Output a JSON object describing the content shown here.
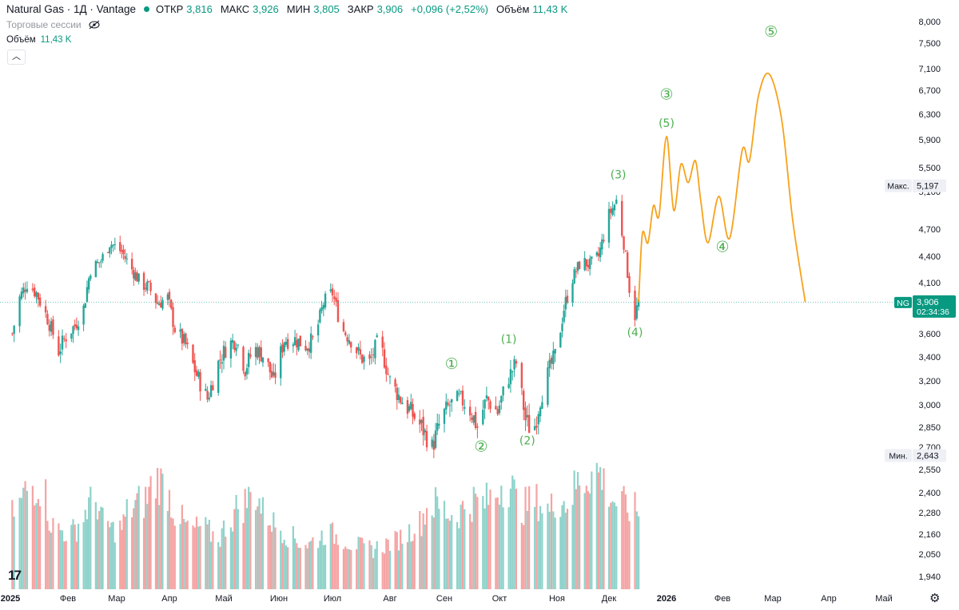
{
  "header": {
    "symbol": "Natural Gas · 1Д · Vantage",
    "open_label": "ОТКР",
    "open_value": "3,816",
    "high_label": "МАКС",
    "high_value": "3,926",
    "low_label": "МИН",
    "low_value": "3,805",
    "close_label": "ЗАКР",
    "close_value": "3,906",
    "change": "+0,096 (+2,52%)",
    "volume_label": "Объём",
    "volume_value": "11,43 K"
  },
  "sub": {
    "sessions_label": "Торговые сессии",
    "eye_icon": "eye-crossed-icon"
  },
  "volume_legend": {
    "label": "Объём",
    "value": "11,43 K"
  },
  "collapse_icon": "chevron-up-icon",
  "logo": "17",
  "settings_icon": "gear-icon",
  "colors": {
    "up": "#26a69a",
    "down": "#ef5350",
    "volUp": "#8fd3cb",
    "volDown": "#f5a3a3",
    "forecast": "#f7a21b",
    "wave": "#4caf50",
    "accent": "#089981"
  },
  "chart_data": {
    "type": "candlestick",
    "symbol": "NG",
    "y_ticks": [
      "8,000",
      "7,500",
      "7,100",
      "6,700",
      "6,300",
      "5,900",
      "5,500",
      "5,100",
      "4,700",
      "4,400",
      "4,100",
      "3,600",
      "3,400",
      "3,200",
      "3,000",
      "2,850",
      "2,700",
      "2,550",
      "2,400",
      "2,280",
      "2,160",
      "2,050",
      "1,940"
    ],
    "x_ticks": [
      "2025",
      "Фев",
      "Мар",
      "Апр",
      "Май",
      "Июн",
      "Июл",
      "Авг",
      "Сен",
      "Окт",
      "Ноя",
      "Дек",
      "2026",
      "Фев",
      "Мар",
      "Апр",
      "Май"
    ],
    "last_price": {
      "label": "NG",
      "value": "3,906",
      "countdown": "02:34:36"
    },
    "max_label": {
      "label": "Макс.",
      "value": "5,197"
    },
    "min_label": {
      "label": "Мин.",
      "value": "2,643"
    },
    "price_path": [
      [
        "2025-01-02",
        3.6
      ],
      [
        "2025-01-06",
        3.95
      ],
      [
        "2025-01-10",
        4.1
      ],
      [
        "2025-01-15",
        4.0
      ],
      [
        "2025-01-21",
        3.75
      ],
      [
        "2025-01-27",
        3.45
      ],
      [
        "2025-01-31",
        3.58
      ],
      [
        "2025-02-05",
        3.68
      ],
      [
        "2025-02-10",
        3.85
      ],
      [
        "2025-02-14",
        4.25
      ],
      [
        "2025-02-20",
        4.35
      ],
      [
        "2025-02-25",
        4.55
      ],
      [
        "2025-03-04",
        4.45
      ],
      [
        "2025-03-10",
        4.25
      ],
      [
        "2025-03-15",
        4.1
      ],
      [
        "2025-03-20",
        4.05
      ],
      [
        "2025-03-25",
        3.9
      ],
      [
        "2025-03-31",
        3.95
      ],
      [
        "2025-04-04",
        3.65
      ],
      [
        "2025-04-10",
        3.5
      ],
      [
        "2025-04-16",
        3.25
      ],
      [
        "2025-04-22",
        3.05
      ],
      [
        "2025-04-28",
        3.35
      ],
      [
        "2025-05-03",
        3.5
      ],
      [
        "2025-05-08",
        3.55
      ],
      [
        "2025-05-13",
        3.3
      ],
      [
        "2025-05-18",
        3.48
      ],
      [
        "2025-05-24",
        3.4
      ],
      [
        "2025-05-29",
        3.2
      ],
      [
        "2025-06-04",
        3.55
      ],
      [
        "2025-06-10",
        3.55
      ],
      [
        "2025-06-16",
        3.5
      ],
      [
        "2025-06-21",
        3.55
      ],
      [
        "2025-06-26",
        3.9
      ],
      [
        "2025-07-01",
        4.0
      ],
      [
        "2025-07-06",
        3.65
      ],
      [
        "2025-07-11",
        3.55
      ],
      [
        "2025-07-16",
        3.4
      ],
      [
        "2025-07-21",
        3.35
      ],
      [
        "2025-07-26",
        3.55
      ],
      [
        "2025-08-01",
        3.2
      ],
      [
        "2025-08-07",
        3.05
      ],
      [
        "2025-08-13",
        2.95
      ],
      [
        "2025-08-19",
        2.85
      ],
      [
        "2025-08-25",
        2.7
      ],
      [
        "2025-08-30",
        2.9
      ],
      [
        "2025-09-04",
        3.0
      ],
      [
        "2025-09-09",
        3.05
      ],
      [
        "2025-09-14",
        3.0
      ],
      [
        "2025-09-19",
        2.85
      ],
      [
        "2025-09-24",
        3.05
      ],
      [
        "2025-09-30",
        2.95
      ],
      [
        "2025-10-05",
        3.2
      ],
      [
        "2025-10-10",
        3.35
      ],
      [
        "2025-10-15",
        2.9
      ],
      [
        "2025-10-19",
        2.8
      ],
      [
        "2025-10-23",
        3.05
      ],
      [
        "2025-10-28",
        3.3
      ],
      [
        "2025-11-01",
        3.45
      ],
      [
        "2025-11-05",
        3.85
      ],
      [
        "2025-11-10",
        4.15
      ],
      [
        "2025-11-15",
        4.35
      ],
      [
        "2025-11-20",
        4.3
      ],
      [
        "2025-11-25",
        4.4
      ],
      [
        "2025-12-01",
        4.85
      ],
      [
        "2025-12-05",
        5.0
      ],
      [
        "2025-12-09",
        4.55
      ],
      [
        "2025-12-12",
        4.05
      ],
      [
        "2025-12-15",
        3.78
      ],
      [
        "2025-12-17",
        3.91
      ]
    ],
    "volume_level": [
      0.5,
      0.62,
      0.7,
      0.72,
      0.45,
      0.4,
      0.38,
      0.42,
      0.55,
      0.6,
      0.45,
      0.4,
      0.42,
      0.55,
      0.58,
      0.62,
      0.75,
      0.7,
      0.55,
      0.45,
      0.4,
      0.42,
      0.38,
      0.35,
      0.45,
      0.55,
      0.6,
      0.65,
      0.52,
      0.45,
      0.4,
      0.35,
      0.32,
      0.3,
      0.35,
      0.38,
      0.36,
      0.33,
      0.3,
      0.28,
      0.27,
      0.3,
      0.32,
      0.35,
      0.4,
      0.45,
      0.55,
      0.58,
      0.52,
      0.5,
      0.55,
      0.6,
      0.58,
      0.62,
      0.72,
      0.7,
      0.55,
      0.58,
      0.6,
      0.52,
      0.62,
      0.58,
      0.7,
      0.75,
      0.8,
      0.78,
      0.62,
      0.58,
      0.55,
      0.52
    ],
    "forecast": [
      [
        "2025-12-17",
        3.91
      ],
      [
        "2025-12-19",
        4.65
      ],
      [
        "2025-12-22",
        4.55
      ],
      [
        "2025-12-25",
        4.95
      ],
      [
        "2025-12-28",
        4.85
      ],
      [
        "2026-01-01",
        5.95
      ],
      [
        "2026-01-05",
        4.9
      ],
      [
        "2026-01-09",
        5.55
      ],
      [
        "2026-01-13",
        5.25
      ],
      [
        "2026-01-17",
        5.6
      ],
      [
        "2026-01-20",
        5.0
      ],
      [
        "2026-01-24",
        4.55
      ],
      [
        "2026-01-30",
        5.05
      ],
      [
        "2026-02-05",
        4.6
      ],
      [
        "2026-02-12",
        5.75
      ],
      [
        "2026-02-16",
        5.6
      ],
      [
        "2026-02-21",
        6.6
      ],
      [
        "2026-02-27",
        7.0
      ],
      [
        "2026-03-06",
        6.2
      ],
      [
        "2026-03-12",
        4.8
      ],
      [
        "2026-03-19",
        3.91
      ]
    ],
    "wave_labels": [
      {
        "text": "①",
        "date": "2025-09-05",
        "price": 3.3
      },
      {
        "text": "(1)",
        "date": "2025-10-06",
        "price": 3.52
      },
      {
        "text": "②",
        "date": "2025-09-21",
        "price": 2.67
      },
      {
        "text": "(2)",
        "date": "2025-10-16",
        "price": 2.72
      },
      {
        "text": "(3)",
        "date": "2025-12-06",
        "price": 5.32
      },
      {
        "text": "(4)",
        "date": "2025-12-15",
        "price": 3.58
      },
      {
        "text": "③",
        "date": "2026-01-01",
        "price": 6.55
      },
      {
        "text": "(5)",
        "date": "2026-01-01",
        "price": 6.1
      },
      {
        "text": "④",
        "date": "2026-02-01",
        "price": 4.45
      },
      {
        "text": "⑤",
        "date": "2026-02-28",
        "price": 7.65
      }
    ]
  }
}
